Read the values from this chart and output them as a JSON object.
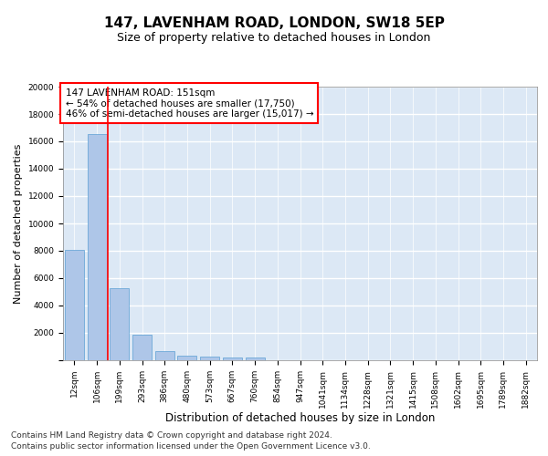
{
  "title1": "147, LAVENHAM ROAD, LONDON, SW18 5EP",
  "title2": "Size of property relative to detached houses in London",
  "xlabel": "Distribution of detached houses by size in London",
  "ylabel": "Number of detached properties",
  "bar_labels": [
    "12sqm",
    "106sqm",
    "199sqm",
    "293sqm",
    "386sqm",
    "480sqm",
    "573sqm",
    "667sqm",
    "760sqm",
    "854sqm",
    "947sqm",
    "1041sqm",
    "1134sqm",
    "1228sqm",
    "1321sqm",
    "1415sqm",
    "1508sqm",
    "1602sqm",
    "1695sqm",
    "1789sqm",
    "1882sqm"
  ],
  "bar_values": [
    8100,
    16550,
    5300,
    1850,
    650,
    350,
    270,
    190,
    170,
    0,
    0,
    0,
    0,
    0,
    0,
    0,
    0,
    0,
    0,
    0,
    0
  ],
  "bar_color": "#aec6e8",
  "bar_edge_color": "#5a9fd4",
  "background_color": "#dce8f5",
  "grid_color": "#ffffff",
  "annotation_box_text": "147 LAVENHAM ROAD: 151sqm\n← 54% of detached houses are smaller (17,750)\n46% of semi-detached houses are larger (15,017) →",
  "red_line_x": 1.5,
  "ylim": [
    0,
    20000
  ],
  "yticks": [
    0,
    2000,
    4000,
    6000,
    8000,
    10000,
    12000,
    14000,
    16000,
    18000,
    20000
  ],
  "footnote1": "Contains HM Land Registry data © Crown copyright and database right 2024.",
  "footnote2": "Contains public sector information licensed under the Open Government Licence v3.0.",
  "title1_fontsize": 11,
  "title2_fontsize": 9,
  "xlabel_fontsize": 8.5,
  "ylabel_fontsize": 8,
  "tick_fontsize": 6.5,
  "annot_fontsize": 7.5,
  "footnote_fontsize": 6.5
}
